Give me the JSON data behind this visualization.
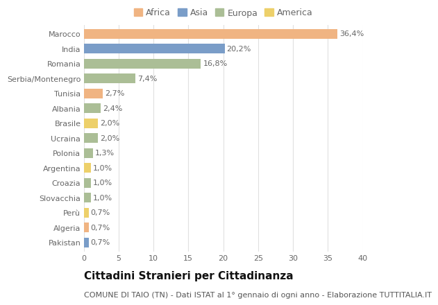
{
  "countries": [
    "Marocco",
    "India",
    "Romania",
    "Serbia/Montenegro",
    "Tunisia",
    "Albania",
    "Brasile",
    "Ucraina",
    "Polonia",
    "Argentina",
    "Croazia",
    "Slovacchia",
    "Perù",
    "Algeria",
    "Pakistan"
  ],
  "values": [
    36.4,
    20.2,
    16.8,
    7.4,
    2.7,
    2.4,
    2.0,
    2.0,
    1.3,
    1.0,
    1.0,
    1.0,
    0.7,
    0.7,
    0.7
  ],
  "labels": [
    "36,4%",
    "20,2%",
    "16,8%",
    "7,4%",
    "2,7%",
    "2,4%",
    "2,0%",
    "2,0%",
    "1,3%",
    "1,0%",
    "1,0%",
    "1,0%",
    "0,7%",
    "0,7%",
    "0,7%"
  ],
  "continents": [
    "Africa",
    "Asia",
    "Europa",
    "Europa",
    "Africa",
    "Europa",
    "America",
    "Europa",
    "Europa",
    "America",
    "Europa",
    "Europa",
    "America",
    "Africa",
    "Asia"
  ],
  "colors": {
    "Africa": "#F0B482",
    "Asia": "#7A9DC8",
    "Europa": "#ABBE96",
    "America": "#EDD06A"
  },
  "legend_order": [
    "Africa",
    "Asia",
    "Europa",
    "America"
  ],
  "xlim": [
    0,
    40
  ],
  "xticks": [
    0,
    5,
    10,
    15,
    20,
    25,
    30,
    35,
    40
  ],
  "title": "Cittadini Stranieri per Cittadinanza",
  "subtitle": "COMUNE DI TAIO (TN) - Dati ISTAT al 1° gennaio di ogni anno - Elaborazione TUTTITALIA.IT",
  "bg_color": "#ffffff",
  "grid_color": "#e0e0e0",
  "bar_height": 0.65,
  "title_fontsize": 11,
  "subtitle_fontsize": 8,
  "label_fontsize": 8,
  "tick_fontsize": 8,
  "legend_fontsize": 9
}
